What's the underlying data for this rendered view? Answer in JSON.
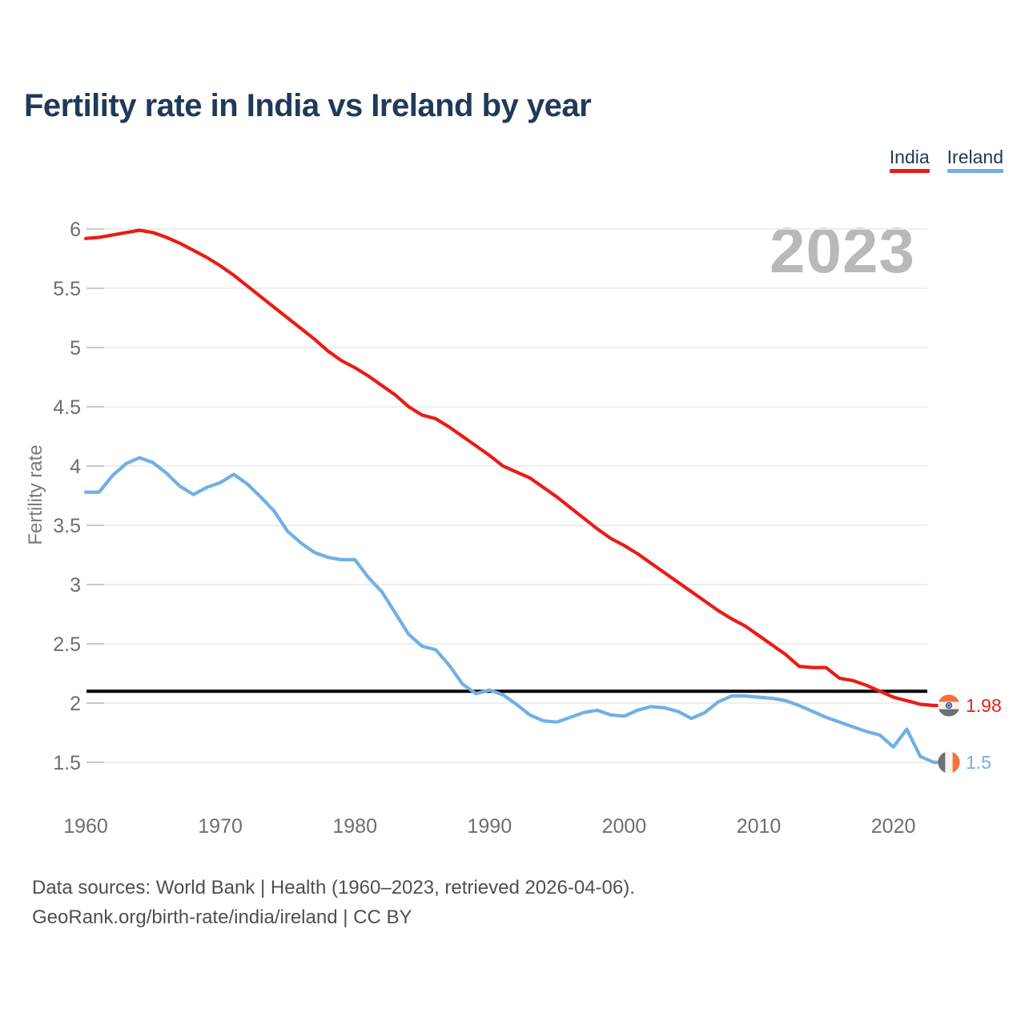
{
  "header": {
    "title": "Fertility rate in India vs Ireland by year"
  },
  "watermark_year": "2023",
  "footer": {
    "line1": "Data sources: World Bank | Health (1960–2023, retrieved 2026-04-06).",
    "line2": "GeoRank.org/birth-rate/india/ireland | CC BY"
  },
  "colors": {
    "india": "#ea1c17",
    "ireland": "#70b0e4",
    "title_navy": "#203a58",
    "grid": "#ececec",
    "tick": "#c9c9c9",
    "tick_text": "#6e6e6e",
    "reference_line": "#000000",
    "watermark_gray": "#b9b9b9",
    "flag_orange": "#f4713f",
    "flag_gray": "#6f7071",
    "flag_white": "#f7f4ef",
    "chakra_blue": "#30519b"
  },
  "icons": {
    "india_flag": "india-flag-circle-icon",
    "ireland_flag": "ireland-flag-circle-icon"
  },
  "chart_data": {
    "type": "line",
    "title": "Fertility rate in India vs Ireland by year",
    "xlabel": "",
    "ylabel": "Fertility rate",
    "xlim": [
      1960,
      2023
    ],
    "ylim": [
      1.5,
      6
    ],
    "grid": "horizontal",
    "legend_position": "top-right",
    "x_ticks": [
      1960,
      1970,
      1980,
      1990,
      2000,
      2010,
      2020
    ],
    "y_ticks": [
      6,
      5.5,
      5,
      4.5,
      4,
      3.5,
      3,
      2.5,
      2,
      1.5
    ],
    "reference_line": {
      "value": 2.1,
      "label": ""
    },
    "years": [
      1960,
      1961,
      1962,
      1963,
      1964,
      1965,
      1966,
      1967,
      1968,
      1969,
      1970,
      1971,
      1972,
      1973,
      1974,
      1975,
      1976,
      1977,
      1978,
      1979,
      1980,
      1981,
      1982,
      1983,
      1984,
      1985,
      1986,
      1987,
      1988,
      1989,
      1990,
      1991,
      1992,
      1993,
      1994,
      1995,
      1996,
      1997,
      1998,
      1999,
      2000,
      2001,
      2002,
      2003,
      2004,
      2005,
      2006,
      2007,
      2008,
      2009,
      2010,
      2011,
      2012,
      2013,
      2014,
      2015,
      2016,
      2017,
      2018,
      2019,
      2020,
      2021,
      2022,
      2023
    ],
    "series": [
      {
        "name": "India",
        "color": "#ea1c17",
        "end_label": "1.98",
        "values": [
          5.92,
          5.93,
          5.95,
          5.97,
          5.99,
          5.97,
          5.93,
          5.88,
          5.82,
          5.76,
          5.69,
          5.61,
          5.52,
          5.43,
          5.34,
          5.25,
          5.16,
          5.07,
          4.97,
          4.89,
          4.83,
          4.76,
          4.68,
          4.6,
          4.5,
          4.43,
          4.4,
          4.33,
          4.25,
          4.17,
          4.09,
          4.0,
          3.95,
          3.9,
          3.82,
          3.74,
          3.65,
          3.56,
          3.47,
          3.39,
          3.33,
          3.26,
          3.18,
          3.1,
          3.02,
          2.94,
          2.86,
          2.78,
          2.71,
          2.65,
          2.57,
          2.49,
          2.41,
          2.31,
          2.3,
          2.3,
          2.21,
          2.19,
          2.15,
          2.1,
          2.05,
          2.02,
          1.99,
          1.98
        ]
      },
      {
        "name": "Ireland",
        "color": "#70b0e4",
        "end_label": "1.5",
        "values": [
          3.78,
          3.78,
          3.92,
          4.02,
          4.07,
          4.03,
          3.94,
          3.83,
          3.76,
          3.82,
          3.86,
          3.93,
          3.85,
          3.74,
          3.62,
          3.45,
          3.35,
          3.27,
          3.23,
          3.21,
          3.21,
          3.06,
          2.94,
          2.76,
          2.58,
          2.48,
          2.45,
          2.32,
          2.16,
          2.08,
          2.11,
          2.07,
          1.99,
          1.9,
          1.85,
          1.84,
          1.88,
          1.92,
          1.94,
          1.9,
          1.89,
          1.94,
          1.97,
          1.96,
          1.93,
          1.87,
          1.92,
          2.01,
          2.06,
          2.06,
          2.05,
          2.04,
          2.02,
          1.98,
          1.93,
          1.88,
          1.84,
          1.8,
          1.76,
          1.73,
          1.63,
          1.78,
          1.55,
          1.5
        ]
      }
    ]
  }
}
